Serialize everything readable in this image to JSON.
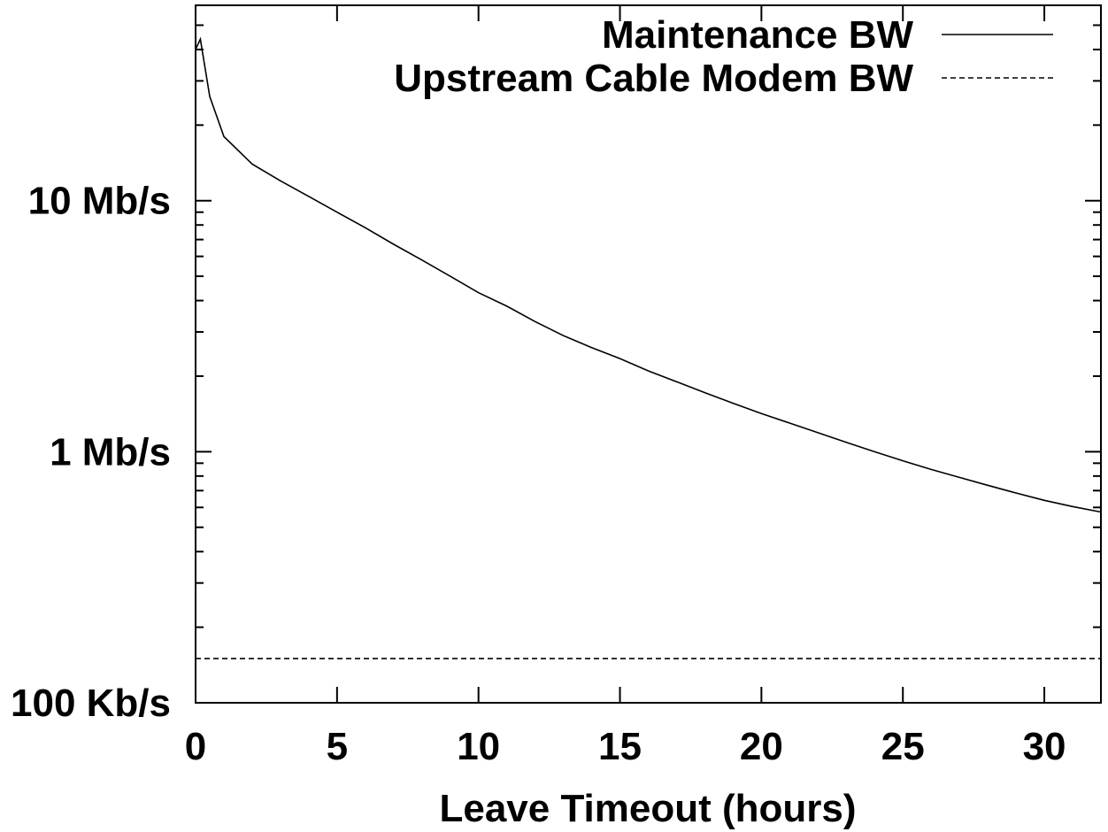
{
  "chart_data": {
    "type": "line",
    "xlabel": "Leave Timeout (hours)",
    "ylabel": "",
    "x_scale": "linear",
    "y_scale": "log",
    "xlim": [
      0,
      32
    ],
    "ylim_bps": [
      100000,
      60000000
    ],
    "grid": false,
    "legend_position": "top-right",
    "x_ticks": [
      {
        "value": 0,
        "label": "0"
      },
      {
        "value": 5,
        "label": "5"
      },
      {
        "value": 10,
        "label": "10"
      },
      {
        "value": 15,
        "label": "15"
      },
      {
        "value": 20,
        "label": "20"
      },
      {
        "value": 25,
        "label": "25"
      },
      {
        "value": 30,
        "label": "30"
      }
    ],
    "y_ticks": [
      {
        "value": 100000,
        "label": "100 Kb/s"
      },
      {
        "value": 1000000,
        "label": "1 Mb/s"
      },
      {
        "value": 10000000,
        "label": "10 Mb/s"
      }
    ],
    "series": [
      {
        "name": "Maintenance BW",
        "style": "solid",
        "color": "#000000",
        "x": [
          0,
          0.17,
          0.5,
          1,
          2,
          3,
          4,
          5,
          6,
          7,
          8,
          9,
          10,
          11,
          12,
          13,
          14,
          15,
          16,
          17,
          18,
          19,
          20,
          21,
          22,
          23,
          24,
          25,
          26,
          27,
          28,
          29,
          30,
          31,
          32
        ],
        "y": [
          40000000,
          44000000,
          26000000,
          18000000,
          14000000,
          12000000,
          10400000,
          9000000,
          7800000,
          6700000,
          5800000,
          5000000,
          4300000,
          3800000,
          3300000,
          2900000,
          2600000,
          2350000,
          2100000,
          1900000,
          1720000,
          1560000,
          1420000,
          1300000,
          1190000,
          1090000,
          1000000,
          920000,
          850000,
          790000,
          735000,
          685000,
          640000,
          605000,
          575000
        ]
      },
      {
        "name": "Upstream Cable Modem BW",
        "style": "dashed",
        "color": "#000000",
        "x": [
          0,
          32
        ],
        "y": [
          150000,
          150000
        ]
      }
    ]
  }
}
